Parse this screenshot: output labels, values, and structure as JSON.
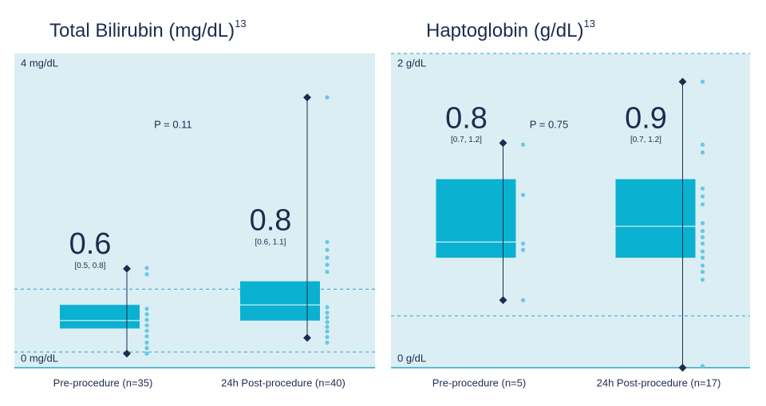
{
  "chart_data": [
    {
      "type": "box",
      "title": "Total Bilirubin (mg/dL)",
      "reference": "13",
      "annotation": "P = 0.11",
      "ylim": [
        0,
        4
      ],
      "yticks": [
        {
          "value": 0,
          "label": "0 mg/dL"
        },
        {
          "value": 4,
          "label": "4 mg/dL"
        }
      ],
      "reference_lines": [
        0.2,
        1.0
      ],
      "box_color": "#0bb1d1",
      "point_color": "#67c8e6",
      "whisker_color": "#1b2d4f",
      "categories": [
        "Pre-procedure (n=35)",
        "24h Post-procedure (n=40)"
      ],
      "boxes": [
        {
          "median": 0.6,
          "q1": 0.5,
          "q3": 0.8,
          "min": 0.18,
          "max": 1.26,
          "range_label": "[0.5, 0.8]",
          "points": [
            1.27,
            1.19,
            0.75,
            0.68,
            0.61,
            0.54,
            0.47,
            0.4,
            0.32,
            0.25,
            0.18
          ]
        },
        {
          "median": 0.8,
          "q1": 0.6,
          "q3": 1.1,
          "min": 0.38,
          "max": 3.44,
          "range_label": "[0.6, 1.1]",
          "points": [
            3.44,
            1.6,
            1.5,
            1.4,
            1.31,
            1.22,
            0.77,
            0.7,
            0.64,
            0.58,
            0.52,
            0.46,
            0.39,
            0.32
          ]
        }
      ]
    },
    {
      "type": "box",
      "title": "Haptoglobin (g/dL)",
      "reference": "13",
      "annotation": "P = 0.75",
      "ylim": [
        0,
        2
      ],
      "yticks": [
        {
          "value": 0,
          "label": "0 g/dL"
        },
        {
          "value": 2,
          "label": "2 g/dL"
        }
      ],
      "reference_lines": [
        0.33,
        2
      ],
      "box_color": "#0bb1d1",
      "point_color": "#67c8e6",
      "whisker_color": "#1b2d4f",
      "categories": [
        "Pre-procedure (n=5)",
        "24h Post-procedure (n=17)"
      ],
      "boxes": [
        {
          "median": 0.8,
          "q1": 0.7,
          "q3": 1.2,
          "min": 0.43,
          "max": 1.43,
          "range_label": "[0.7, 1.2]",
          "points": [
            1.42,
            1.1,
            0.79,
            0.75,
            0.43
          ]
        },
        {
          "median": 0.9,
          "q1": 0.7,
          "q3": 1.2,
          "min": 0,
          "max": 1.82,
          "range_label": "[0.7, 1.2]",
          "points": [
            1.82,
            1.42,
            1.37,
            1.14,
            1.09,
            1.04,
            0.92,
            0.87,
            0.83,
            0.79,
            0.74,
            0.7,
            0.65,
            0.61,
            0.56,
            0.01
          ]
        }
      ]
    }
  ]
}
